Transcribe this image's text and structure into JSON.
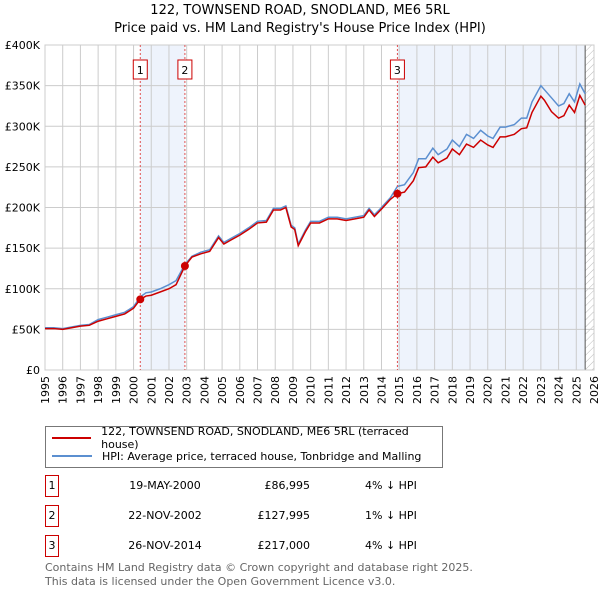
{
  "chart_data": {
    "type": "line",
    "title": "122, TOWNSEND ROAD, SNODLAND, ME6 5RL",
    "subtitle": "Price paid vs. HM Land Registry's House Price Index (HPI)",
    "xlim": [
      1995,
      2026
    ],
    "ylim": [
      0,
      400000
    ],
    "y_ticks": [
      {
        "v": 0,
        "l": "£0"
      },
      {
        "v": 50000,
        "l": "£50K"
      },
      {
        "v": 100000,
        "l": "£100K"
      },
      {
        "v": 150000,
        "l": "£150K"
      },
      {
        "v": 200000,
        "l": "£200K"
      },
      {
        "v": 250000,
        "l": "£250K"
      },
      {
        "v": 300000,
        "l": "£300K"
      },
      {
        "v": 350000,
        "l": "£350K"
      },
      {
        "v": 400000,
        "l": "£400K"
      }
    ],
    "x_ticks": [
      "1995",
      "1996",
      "1997",
      "1998",
      "1999",
      "2000",
      "2001",
      "2002",
      "2003",
      "2004",
      "2005",
      "2006",
      "2007",
      "2008",
      "2009",
      "2010",
      "2011",
      "2012",
      "2013",
      "2014",
      "2015",
      "2016",
      "2017",
      "2018",
      "2019",
      "2020",
      "2021",
      "2022",
      "2023",
      "2024",
      "2025",
      "2026"
    ],
    "grid": true,
    "colors": {
      "property": "#cc0000",
      "hpi": "#5b8fd0",
      "shade": "#eef3fc"
    },
    "shaded_ranges": [
      [
        2000.38,
        2002.9
      ],
      [
        2014.9,
        2025.5
      ]
    ],
    "hatched_from": 2025.5,
    "series_points_x_hpi_property_k": [
      [
        1995,
        52,
        51
      ],
      [
        1995.5,
        52,
        51
      ],
      [
        1996,
        51,
        50
      ],
      [
        1996.5,
        53,
        52
      ],
      [
        1997,
        55,
        54
      ],
      [
        1997.5,
        56,
        55
      ],
      [
        1998,
        62,
        60
      ],
      [
        1998.5,
        65,
        63
      ],
      [
        1999,
        68,
        66
      ],
      [
        1999.5,
        71,
        69
      ],
      [
        2000,
        78,
        76
      ],
      [
        2000.38,
        90,
        87
      ],
      [
        2000.7,
        95,
        91
      ],
      [
        2001,
        96,
        92
      ],
      [
        2001.5,
        100,
        96
      ],
      [
        2002,
        105,
        100
      ],
      [
        2002.4,
        110,
        105
      ],
      [
        2002.9,
        130,
        128
      ],
      [
        2003.3,
        140,
        139
      ],
      [
        2003.8,
        145,
        143
      ],
      [
        2004.3,
        148,
        146
      ],
      [
        2004.8,
        165,
        163
      ],
      [
        2005.1,
        157,
        155
      ],
      [
        2005.5,
        162,
        160
      ],
      [
        2006,
        168,
        166
      ],
      [
        2006.5,
        175,
        173
      ],
      [
        2007,
        183,
        181
      ],
      [
        2007.5,
        184,
        182
      ],
      [
        2007.9,
        199,
        197
      ],
      [
        2008.3,
        199,
        197
      ],
      [
        2008.6,
        202,
        200
      ],
      [
        2008.9,
        178,
        176
      ],
      [
        2009.1,
        175,
        173
      ],
      [
        2009.3,
        155,
        153
      ],
      [
        2009.7,
        172,
        170
      ],
      [
        2010,
        183,
        181
      ],
      [
        2010.5,
        183,
        181
      ],
      [
        2011,
        188,
        186
      ],
      [
        2011.5,
        188,
        186
      ],
      [
        2012,
        186,
        184
      ],
      [
        2012.5,
        188,
        186
      ],
      [
        2013,
        190,
        188
      ],
      [
        2013.3,
        199,
        197
      ],
      [
        2013.6,
        191,
        189
      ],
      [
        2014,
        200,
        198
      ],
      [
        2014.5,
        212,
        210
      ],
      [
        2014.9,
        226,
        217
      ],
      [
        2015.3,
        228,
        219
      ],
      [
        2015.8,
        243,
        233
      ],
      [
        2016.1,
        260,
        249
      ],
      [
        2016.5,
        260,
        250
      ],
      [
        2016.9,
        273,
        262
      ],
      [
        2017.2,
        265,
        255
      ],
      [
        2017.7,
        272,
        261
      ],
      [
        2018,
        283,
        272
      ],
      [
        2018.4,
        275,
        265
      ],
      [
        2018.8,
        290,
        278
      ],
      [
        2019.2,
        285,
        274
      ],
      [
        2019.6,
        295,
        283
      ],
      [
        2020,
        288,
        277
      ],
      [
        2020.3,
        285,
        274
      ],
      [
        2020.7,
        299,
        287
      ],
      [
        2021,
        299,
        287
      ],
      [
        2021.5,
        302,
        290
      ],
      [
        2021.9,
        310,
        297
      ],
      [
        2022.2,
        310,
        298
      ],
      [
        2022.5,
        330,
        317
      ],
      [
        2023,
        350,
        337
      ],
      [
        2023.2,
        345,
        332
      ],
      [
        2023.6,
        335,
        318
      ],
      [
        2024,
        325,
        310
      ],
      [
        2024.3,
        328,
        313
      ],
      [
        2024.6,
        340,
        326
      ],
      [
        2024.9,
        330,
        317
      ],
      [
        2025.2,
        352,
        338
      ],
      [
        2025.5,
        340,
        326
      ]
    ],
    "sales": [
      {
        "n": "1",
        "x": 2000.38,
        "price": 86995,
        "date": "19-MAY-2000",
        "price_label": "£86,995",
        "hpi": "4% ↓ HPI"
      },
      {
        "n": "2",
        "x": 2002.9,
        "price": 127995,
        "date": "22-NOV-2002",
        "price_label": "£127,995",
        "hpi": "1% ↓ HPI"
      },
      {
        "n": "3",
        "x": 2014.9,
        "price": 217000,
        "date": "26-NOV-2014",
        "price_label": "£217,000",
        "hpi": "4% ↓ HPI"
      }
    ],
    "legend": {
      "property": "122, TOWNSEND ROAD, SNODLAND, ME6 5RL (terraced house)",
      "hpi": "HPI: Average price, terraced house, Tonbridge and Malling"
    }
  },
  "footer": {
    "line1": "Contains HM Land Registry data © Crown copyright and database right 2025.",
    "line2": "This data is licensed under the Open Government Licence v3.0."
  }
}
